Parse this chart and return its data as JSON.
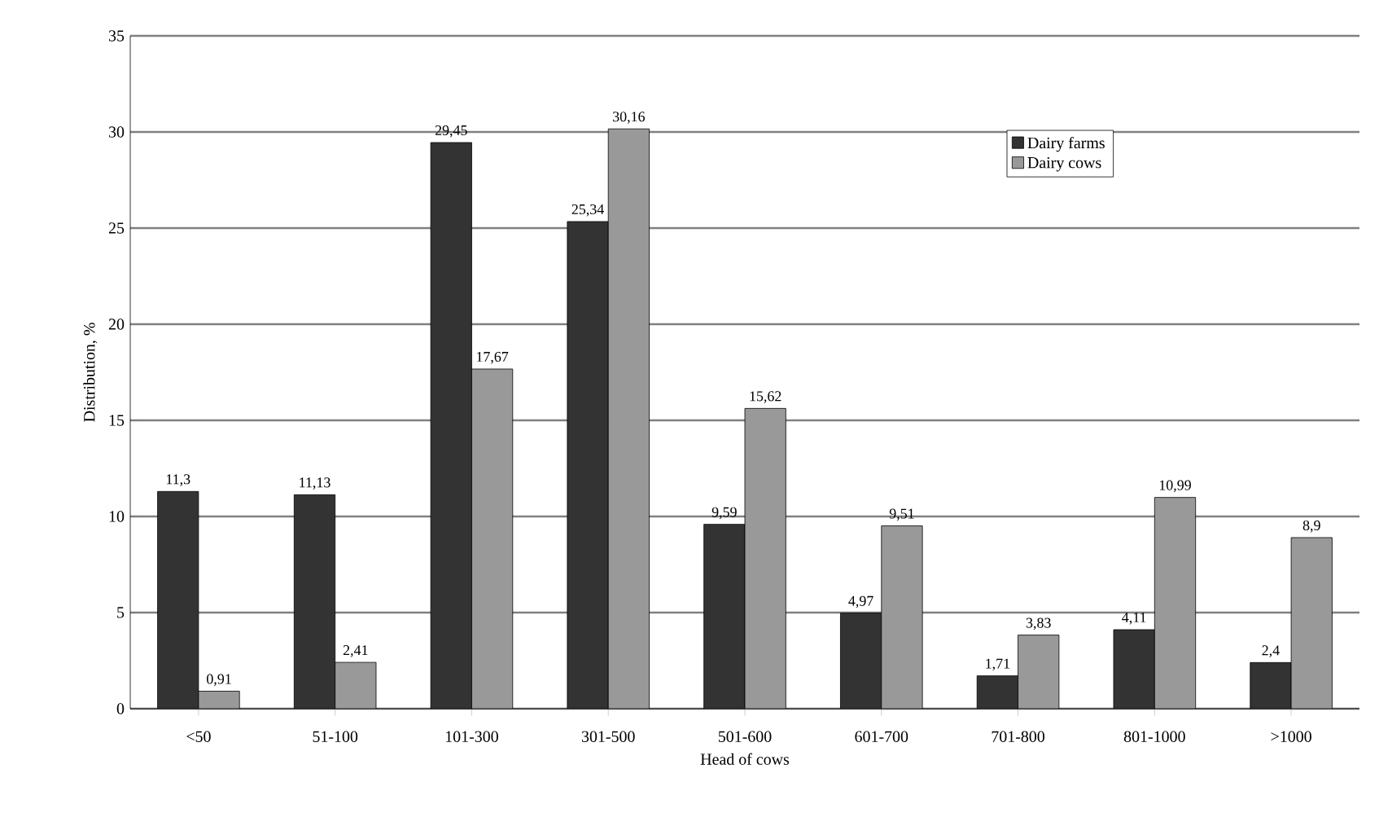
{
  "chart_data": {
    "type": "bar",
    "xlabel": "Head of cows",
    "ylabel": "Distribution, %",
    "categories": [
      "<50",
      "51-100",
      "101-300",
      "301-500",
      "501-600",
      "601-700",
      "701-800",
      "801-1000",
      ">1000"
    ],
    "series": [
      {
        "name": "Dairy farms",
        "color": "#333333",
        "values": [
          11.3,
          11.13,
          29.45,
          25.34,
          9.59,
          4.97,
          1.71,
          4.11,
          2.4
        ],
        "value_labels": [
          "11,3",
          "11,13",
          "29,45",
          "25,34",
          "9,59",
          "4,97",
          "1,71",
          "4,11",
          "2,4"
        ]
      },
      {
        "name": "Dairy cows",
        "color": "#999999",
        "values": [
          0.91,
          2.41,
          17.67,
          30.16,
          15.62,
          9.51,
          3.83,
          10.99,
          8.9
        ],
        "value_labels": [
          "0,91",
          "2,41",
          "17,67",
          "30,16",
          "15,62",
          "9,51",
          "3,83",
          "10,99",
          "8,9"
        ]
      }
    ],
    "ylim": [
      0,
      35
    ],
    "yticks": [
      0,
      5,
      10,
      15,
      20,
      25,
      30,
      35
    ],
    "grid": "y",
    "legend": "top right"
  }
}
